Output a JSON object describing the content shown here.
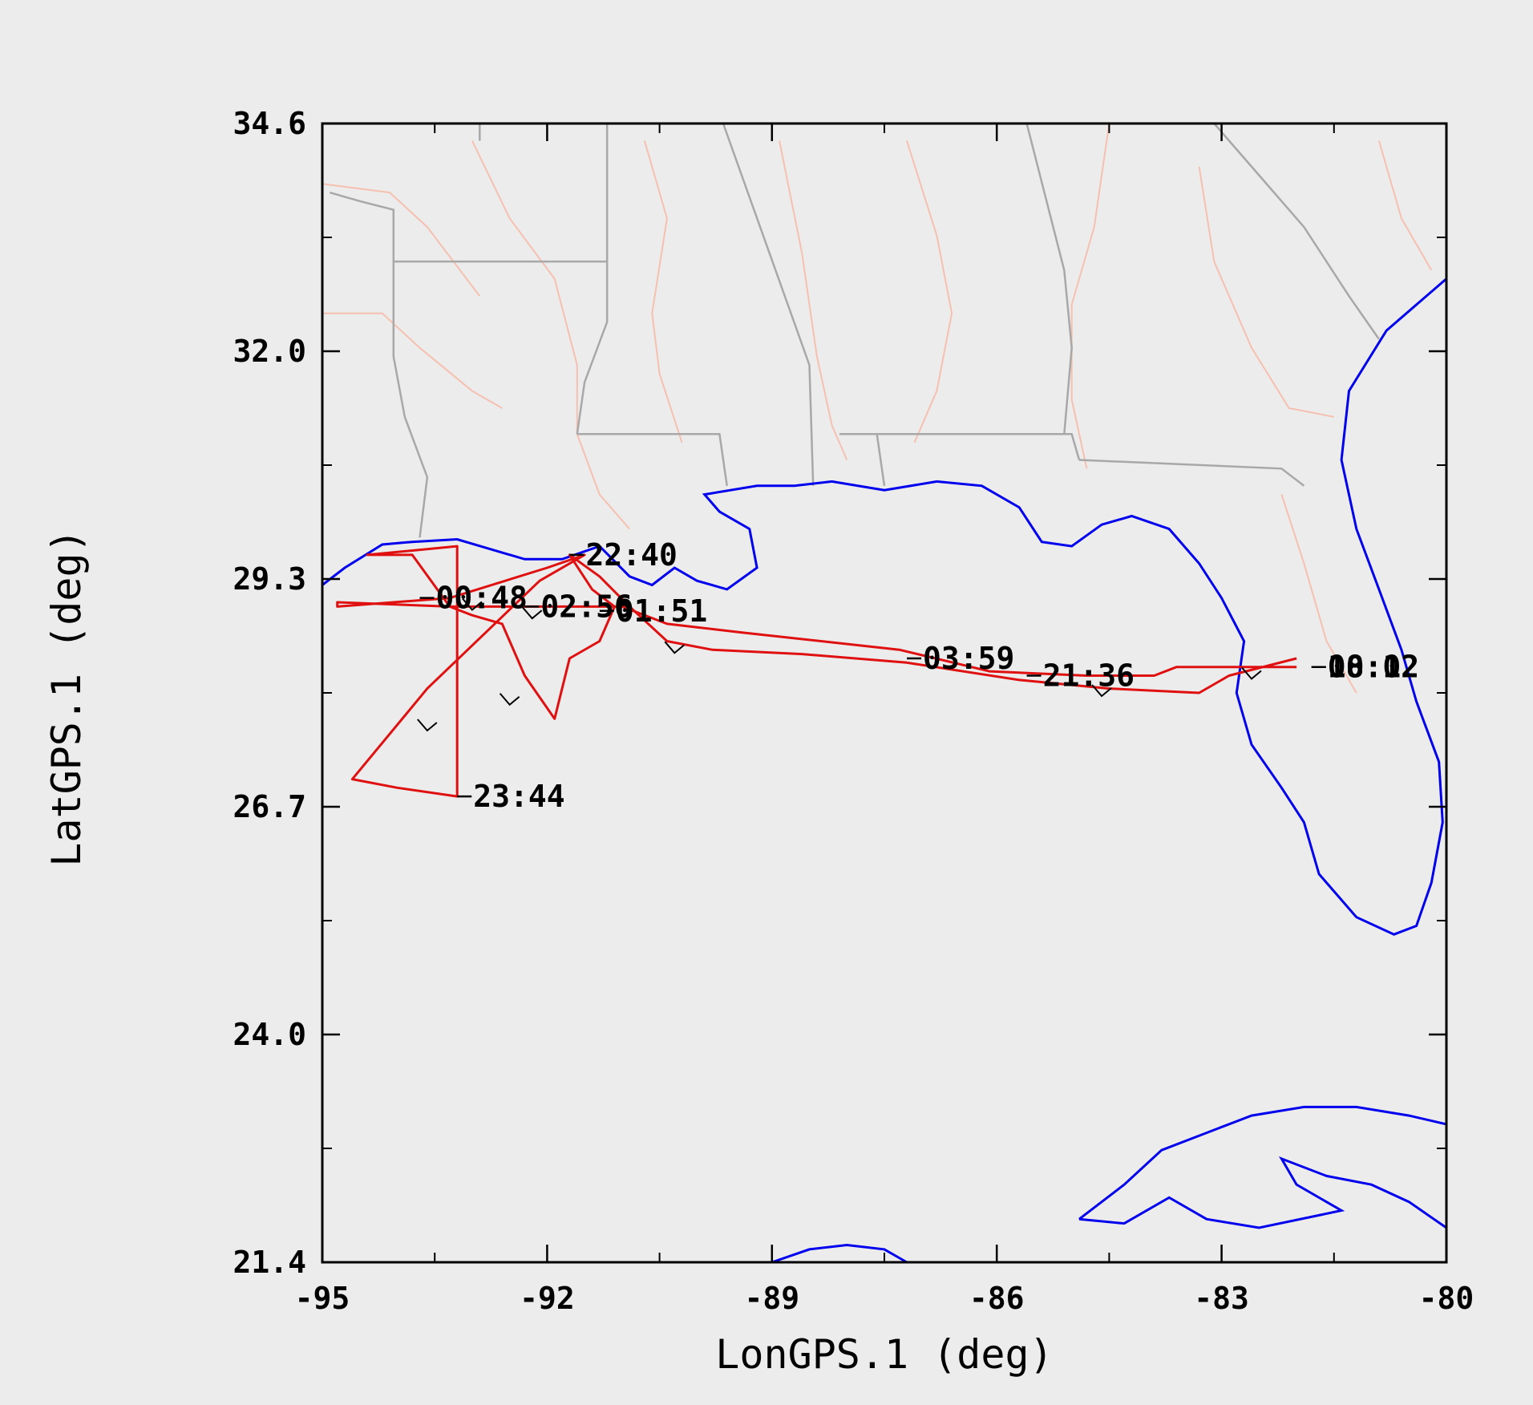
{
  "chart_data": {
    "type": "line",
    "title": "",
    "xlabel": "LonGPS.1 (deg)",
    "ylabel": "LatGPS.1 (deg)",
    "xlim": [
      -95,
      -80
    ],
    "ylim": [
      21.4,
      34.6
    ],
    "x_ticks": [
      "-95",
      "-92",
      "-89",
      "-86",
      "-83",
      "-80"
    ],
    "y_ticks": [
      "21.4",
      "24.0",
      "26.7",
      "29.3",
      "32.0",
      "34.6"
    ],
    "grid": false,
    "colors": {
      "track": "#e01010",
      "coastline": "#0000ee",
      "state_border": "#a8a8a8",
      "river": "#f6c0b0",
      "background": "#ececec"
    },
    "series": [
      {
        "x": [
          -82.0,
          -82.9,
          -83.3,
          -84.5,
          -85.7,
          -87.2,
          -88.6,
          -89.8,
          -90.4,
          -90.9,
          -91.3,
          -91.7,
          -91.4,
          -91.1,
          -91.3,
          -91.7,
          -91.9,
          -92.3,
          -92.6,
          -93.0,
          -93.3,
          -93.8,
          -94.4,
          -93.2,
          -93.2,
          -94.0,
          -94.6,
          -93.6,
          -92.1,
          -91.5,
          -92.0,
          -93.3,
          -94.8,
          -94.8,
          -93.3,
          -92.2,
          -91.6,
          -91.0,
          -90.4,
          -89.4,
          -87.3,
          -86.1,
          -84.8,
          -83.9,
          -83.6,
          -82.0
        ],
        "y": [
          28.4,
          28.2,
          28.0,
          28.05,
          28.15,
          28.35,
          28.45,
          28.5,
          28.6,
          29.0,
          29.35,
          29.6,
          29.2,
          29.0,
          28.6,
          28.4,
          27.7,
          28.2,
          28.8,
          28.9,
          29.0,
          29.6,
          29.6,
          29.7,
          26.8,
          26.9,
          27.0,
          28.05,
          29.3,
          29.6,
          29.45,
          29.1,
          29.0,
          29.05,
          29.0,
          29.0,
          29.0,
          29.0,
          28.8,
          28.7,
          28.5,
          28.25,
          28.2,
          28.2,
          28.3,
          28.3
        ]
      }
    ],
    "time_labels": [
      {
        "text": "22:40",
        "lon": -91.7,
        "lat": 29.6
      },
      {
        "text": "00:48",
        "lon": -93.7,
        "lat": 29.1
      },
      {
        "text": "02:56",
        "lon": -92.3,
        "lat": 29.0
      },
      {
        "text": "01:51",
        "lon": -91.3,
        "lat": 28.95
      },
      {
        "text": "03:59",
        "lon": -87.2,
        "lat": 28.4
      },
      {
        "text": "21:36",
        "lon": -85.6,
        "lat": 28.2
      },
      {
        "text": "23:44",
        "lon": -93.2,
        "lat": 26.8
      },
      {
        "text": "00:02",
        "lon": -81.8,
        "lat": 28.3
      },
      {
        "text": "18:12",
        "lon": -81.8,
        "lat": 28.3
      }
    ],
    "coastline": [
      [
        -95.0,
        29.25
      ],
      [
        -94.7,
        29.45
      ],
      [
        -94.2,
        29.72
      ],
      [
        -93.8,
        29.75
      ],
      [
        -93.2,
        29.78
      ],
      [
        -92.3,
        29.55
      ],
      [
        -91.8,
        29.55
      ],
      [
        -91.3,
        29.7
      ],
      [
        -90.9,
        29.35
      ],
      [
        -90.6,
        29.25
      ],
      [
        -90.3,
        29.45
      ],
      [
        -90.0,
        29.3
      ],
      [
        -89.6,
        29.2
      ],
      [
        -89.2,
        29.45
      ],
      [
        -89.3,
        29.9
      ],
      [
        -89.7,
        30.1
      ],
      [
        -89.9,
        30.3
      ],
      [
        -89.2,
        30.4
      ],
      [
        -88.7,
        30.4
      ],
      [
        -88.2,
        30.45
      ],
      [
        -87.5,
        30.35
      ],
      [
        -86.8,
        30.45
      ],
      [
        -86.2,
        30.4
      ],
      [
        -85.7,
        30.15
      ],
      [
        -85.4,
        29.75
      ],
      [
        -85.0,
        29.7
      ],
      [
        -84.6,
        29.95
      ],
      [
        -84.2,
        30.05
      ],
      [
        -83.7,
        29.9
      ],
      [
        -83.3,
        29.5
      ],
      [
        -83.0,
        29.1
      ],
      [
        -82.7,
        28.6
      ],
      [
        -82.8,
        28.0
      ],
      [
        -82.6,
        27.4
      ],
      [
        -82.2,
        26.9
      ],
      [
        -81.9,
        26.5
      ],
      [
        -81.7,
        25.9
      ],
      [
        -81.2,
        25.4
      ],
      [
        -80.7,
        25.2
      ],
      [
        -80.4,
        25.3
      ],
      [
        -80.2,
        25.8
      ],
      [
        -80.05,
        26.5
      ],
      [
        -80.1,
        27.2
      ],
      [
        -80.4,
        27.9
      ],
      [
        -80.6,
        28.5
      ],
      [
        -80.9,
        29.2
      ],
      [
        -81.2,
        29.9
      ],
      [
        -81.4,
        30.7
      ],
      [
        -81.3,
        31.5
      ],
      [
        -80.8,
        32.2
      ],
      [
        -80.0,
        32.8
      ]
    ],
    "cuba_coast": [
      [
        -84.9,
        21.9
      ],
      [
        -84.3,
        22.3
      ],
      [
        -83.8,
        22.7
      ],
      [
        -83.2,
        22.9
      ],
      [
        -82.6,
        23.1
      ],
      [
        -81.9,
        23.2
      ],
      [
        -81.2,
        23.2
      ],
      [
        -80.5,
        23.1
      ],
      [
        -80.0,
        23.0
      ],
      [
        -80.0,
        21.8
      ],
      [
        -80.5,
        22.1
      ],
      [
        -81.0,
        22.3
      ],
      [
        -81.6,
        22.4
      ],
      [
        -82.2,
        22.6
      ],
      [
        -82.0,
        22.3
      ],
      [
        -81.4,
        22.0
      ],
      [
        -82.5,
        21.8
      ],
      [
        -83.2,
        21.9
      ],
      [
        -83.7,
        22.15
      ],
      [
        -84.3,
        21.85
      ],
      [
        -84.9,
        21.9
      ]
    ],
    "yucatan_coast": [
      [
        -89.0,
        21.4
      ],
      [
        -88.5,
        21.55
      ],
      [
        -88.0,
        21.6
      ],
      [
        -87.5,
        21.55
      ],
      [
        -87.2,
        21.4
      ]
    ],
    "state_borders": [
      [
        [
          -94.05,
          33.0
        ],
        [
          -94.05,
          31.9
        ],
        [
          -93.9,
          31.2
        ],
        [
          -93.6,
          30.5
        ],
        [
          -93.7,
          29.8
        ]
      ],
      [
        [
          -94.05,
          33.0
        ],
        [
          -91.2,
          33.0
        ]
      ],
      [
        [
          -91.2,
          33.0
        ],
        [
          -91.2,
          32.3
        ],
        [
          -91.5,
          31.6
        ],
        [
          -91.6,
          31.0
        ]
      ],
      [
        [
          -91.6,
          31.0
        ],
        [
          -89.7,
          31.0
        ],
        [
          -89.6,
          30.4
        ]
      ],
      [
        [
          -91.2,
          33.0
        ],
        [
          -91.2,
          34.6
        ]
      ],
      [
        [
          -89.65,
          34.6
        ],
        [
          -88.5,
          31.8
        ],
        [
          -88.45,
          30.4
        ]
      ],
      [
        [
          -88.1,
          31.0
        ],
        [
          -87.6,
          31.0
        ],
        [
          -87.5,
          30.4
        ]
      ],
      [
        [
          -87.6,
          31.0
        ],
        [
          -85.0,
          31.0
        ],
        [
          -84.9,
          30.7
        ]
      ],
      [
        [
          -84.9,
          30.7
        ],
        [
          -82.2,
          30.6
        ],
        [
          -81.9,
          30.4
        ]
      ],
      [
        [
          -85.6,
          34.6
        ],
        [
          -85.1,
          32.9
        ],
        [
          -85.0,
          32.0
        ],
        [
          -85.1,
          31.0
        ]
      ],
      [
        [
          -94.9,
          33.8
        ],
        [
          -94.5,
          33.7
        ],
        [
          -94.05,
          33.6
        ],
        [
          -94.05,
          33.0
        ]
      ],
      [
        [
          -92.9,
          34.6
        ],
        [
          -92.9,
          34.4
        ]
      ],
      [
        [
          -83.1,
          34.6
        ],
        [
          -82.5,
          34.0
        ],
        [
          -81.9,
          33.4
        ],
        [
          -81.3,
          32.6
        ],
        [
          -80.9,
          32.1
        ]
      ]
    ],
    "rivers": [
      [
        [
          -93.0,
          34.4
        ],
        [
          -92.5,
          33.5
        ],
        [
          -91.9,
          32.8
        ],
        [
          -91.6,
          31.8
        ],
        [
          -91.6,
          31.0
        ],
        [
          -91.3,
          30.3
        ],
        [
          -90.9,
          29.9
        ]
      ],
      [
        [
          -95.0,
          32.4
        ],
        [
          -94.2,
          32.4
        ],
        [
          -93.7,
          32.0
        ],
        [
          -93.0,
          31.5
        ],
        [
          -92.6,
          31.3
        ]
      ],
      [
        [
          -95.0,
          33.9
        ],
        [
          -94.1,
          33.8
        ],
        [
          -93.6,
          33.4
        ],
        [
          -92.9,
          32.6
        ]
      ],
      [
        [
          -90.7,
          34.4
        ],
        [
          -90.4,
          33.5
        ],
        [
          -90.6,
          32.4
        ],
        [
          -90.5,
          31.7
        ],
        [
          -90.2,
          30.9
        ]
      ],
      [
        [
          -88.9,
          34.4
        ],
        [
          -88.6,
          33.1
        ],
        [
          -88.4,
          31.9
        ],
        [
          -88.2,
          31.1
        ],
        [
          -88.0,
          30.7
        ]
      ],
      [
        [
          -87.2,
          34.4
        ],
        [
          -86.8,
          33.3
        ],
        [
          -86.6,
          32.4
        ],
        [
          -86.8,
          31.5
        ],
        [
          -87.1,
          30.9
        ]
      ],
      [
        [
          -84.5,
          34.6
        ],
        [
          -84.7,
          33.4
        ],
        [
          -85.0,
          32.5
        ],
        [
          -85.0,
          31.4
        ],
        [
          -84.8,
          30.6
        ]
      ],
      [
        [
          -83.3,
          34.1
        ],
        [
          -83.1,
          33.0
        ],
        [
          -82.6,
          32.0
        ],
        [
          -82.1,
          31.3
        ],
        [
          -81.5,
          31.2
        ]
      ],
      [
        [
          -82.2,
          30.3
        ],
        [
          -81.9,
          29.5
        ],
        [
          -81.6,
          28.6
        ],
        [
          -81.2,
          28.0
        ]
      ],
      [
        [
          -80.9,
          34.4
        ],
        [
          -80.6,
          33.5
        ],
        [
          -80.2,
          32.9
        ]
      ]
    ],
    "time_marks": [
      {
        "lon": -92.2,
        "lat": 28.9
      },
      {
        "lon": -90.3,
        "lat": 28.5
      },
      {
        "lon": -92.5,
        "lat": 27.9
      },
      {
        "lon": -93.6,
        "lat": 27.6
      },
      {
        "lon": -93.0,
        "lat": 29.0
      },
      {
        "lon": -84.6,
        "lat": 28.0
      },
      {
        "lon": -82.6,
        "lat": 28.2
      }
    ]
  }
}
